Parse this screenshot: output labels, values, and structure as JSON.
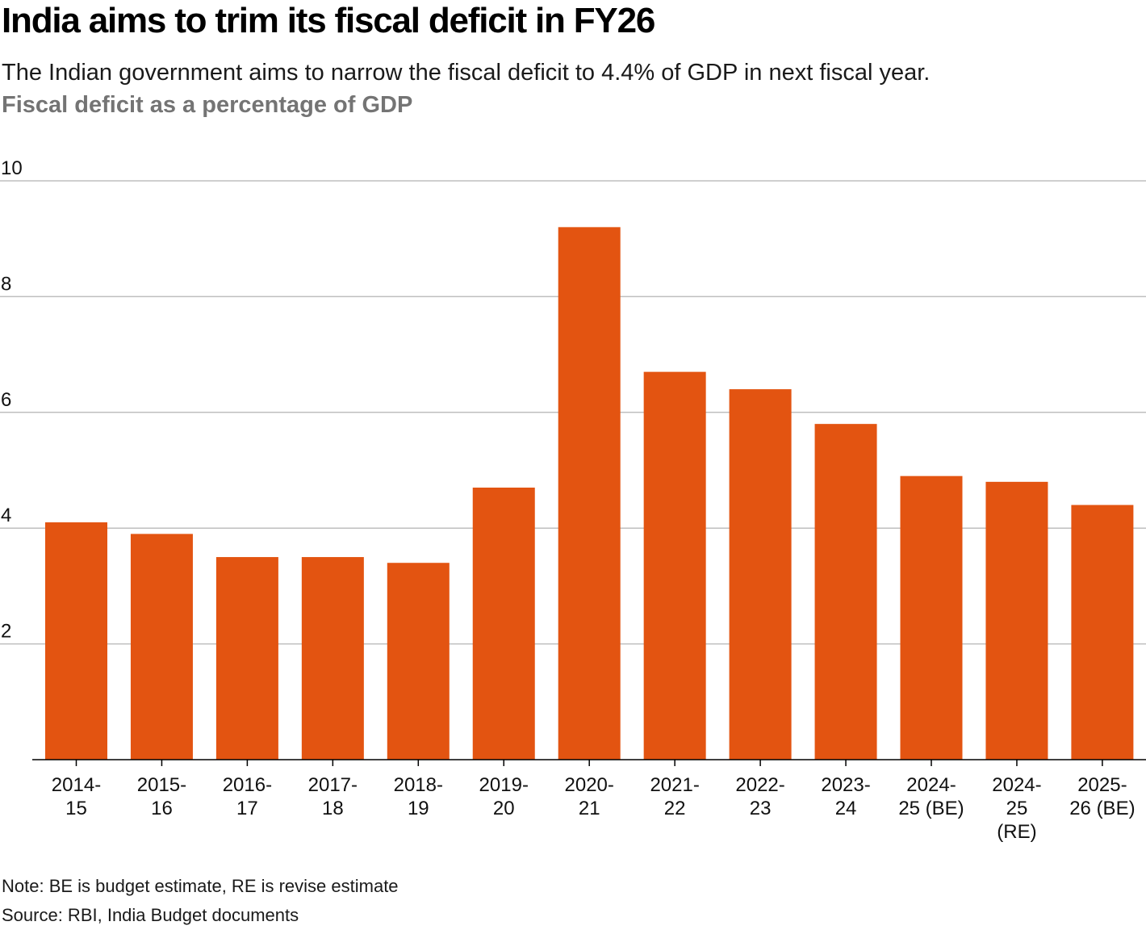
{
  "header": {
    "title": "India aims to trim its fiscal deficit in FY26",
    "subtitle": "The Indian government aims to narrow the fiscal deficit to 4.4% of GDP in next fiscal year.",
    "metric_label": "Fiscal deficit as a percentage of GDP"
  },
  "footer": {
    "note": "Note: BE is budget estimate, RE is revise estimate",
    "source": "Source: RBI, India Budget documents"
  },
  "colors": {
    "bar": "#E35411",
    "grid": "#BFBFBF",
    "axis": "#000000",
    "tick_text": "#111111"
  },
  "chart_data": {
    "type": "bar",
    "title": "India aims to trim its fiscal deficit in FY26",
    "xlabel": "",
    "ylabel": "Fiscal deficit as a percentage of GDP",
    "ylim": [
      0,
      10
    ],
    "yticks": [
      2,
      4,
      6,
      8,
      10
    ],
    "grid": true,
    "categories": [
      [
        "2014-",
        "15"
      ],
      [
        "2015-",
        "16"
      ],
      [
        "2016-",
        "17"
      ],
      [
        "2017-",
        "18"
      ],
      [
        "2018-",
        "19"
      ],
      [
        "2019-",
        "20"
      ],
      [
        "2020-",
        "21"
      ],
      [
        "2021-",
        "22"
      ],
      [
        "2022-",
        "23"
      ],
      [
        "2023-",
        "24"
      ],
      [
        "2024-",
        "25 (BE)"
      ],
      [
        "2024-",
        "25",
        "(RE)"
      ],
      [
        "2025-",
        "26 (BE)"
      ]
    ],
    "values": [
      4.1,
      3.9,
      3.5,
      3.5,
      3.4,
      4.7,
      9.2,
      6.7,
      6.4,
      5.8,
      4.9,
      4.8,
      4.4
    ]
  }
}
